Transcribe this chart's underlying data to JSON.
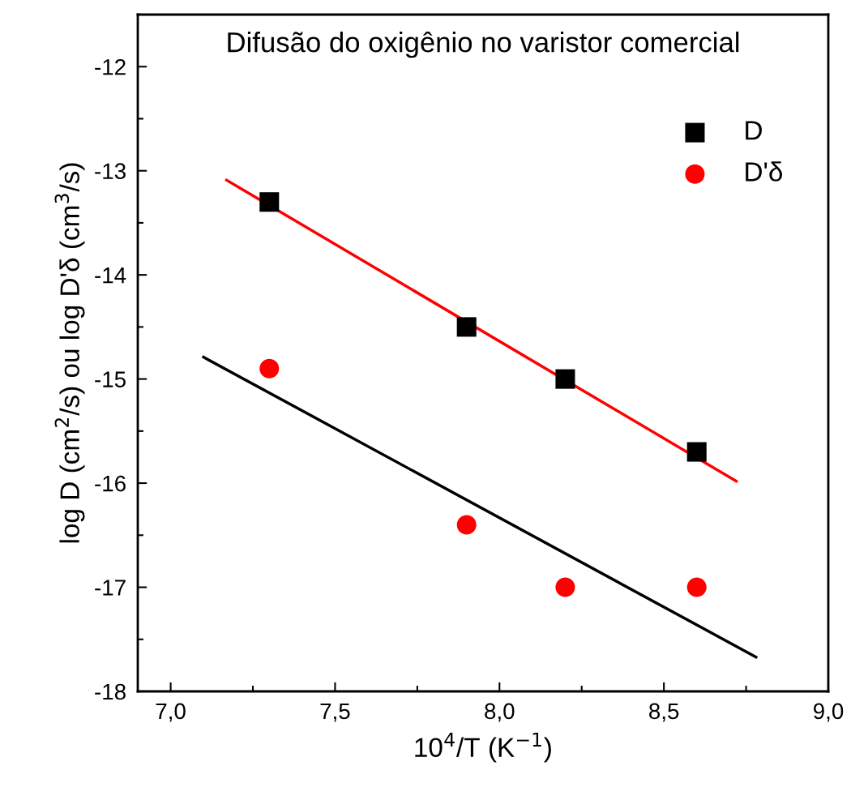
{
  "chart_data": {
    "type": "scatter",
    "title": "Difusão do oxigênio no varistor comercial",
    "xlabel": "10$^{4}$/T (K$^{−1}$)",
    "ylabel": "log D (cm$^{2}$/s) ou log D'δ (cm$^{3}$/s)",
    "xlim": [
      6.9,
      9.0
    ],
    "ylim": [
      -18,
      -11.5
    ],
    "xticks": [
      {
        "value": 7.0,
        "label": "7,0"
      },
      {
        "value": 7.25,
        "label": null
      },
      {
        "value": 7.5,
        "label": "7,5"
      },
      {
        "value": 7.75,
        "label": null
      },
      {
        "value": 8.0,
        "label": "8,0"
      },
      {
        "value": 8.25,
        "label": null
      },
      {
        "value": 8.5,
        "label": "8,5"
      },
      {
        "value": 8.75,
        "label": null
      },
      {
        "value": 9.0,
        "label": "9,0"
      }
    ],
    "yticks": [
      -18,
      {
        "value": -17.5,
        "label": null
      },
      -17,
      {
        "value": -16.5,
        "label": null
      },
      -16,
      {
        "value": -15.5,
        "label": null
      },
      -15,
      {
        "value": -14.5,
        "label": null
      },
      -14,
      {
        "value": -13.5,
        "label": null
      },
      -13,
      {
        "value": -12.5,
        "label": null
      },
      -12
    ],
    "legend": "top right",
    "grid": false,
    "x": [
      7.3,
      7.9,
      8.2,
      8.6
    ],
    "series": [
      {
        "name": "D",
        "color": "#000000",
        "marker": "square",
        "values": [
          -13.3,
          -14.5,
          -15.0,
          -15.7
        ]
      },
      {
        "name": "D'δ",
        "color": "#ff0000",
        "marker": "circle",
        "values": [
          -14.9,
          -16.4,
          -17.0,
          -17.0
        ]
      },
      {
        "type": "line",
        "color": "#ff0000",
        "x": [
          7.17,
          8.72
        ],
        "values": [
          -13.09,
          -15.98
        ]
      },
      {
        "type": "line",
        "color": "#000000",
        "x": [
          7.1,
          8.78
        ],
        "values": [
          -14.79,
          -17.67
        ]
      }
    ]
  }
}
